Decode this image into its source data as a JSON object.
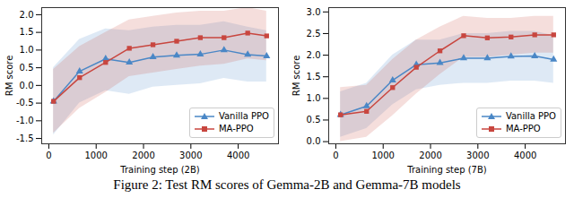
{
  "caption": "Figure 2: Test RM scores of Gemma-2B and Gemma-7B models",
  "chart_data": [
    {
      "type": "line",
      "x_label": "Training step (2B)",
      "y_label": "RM score",
      "x": [
        100,
        650,
        1200,
        1700,
        2200,
        2700,
        3200,
        3700,
        4200,
        4600
      ],
      "xlim": [
        -150,
        4850
      ],
      "xticks": [
        0,
        1000,
        2000,
        3000,
        4000
      ],
      "ylim": [
        -1.65,
        2.2
      ],
      "yticks": [
        {
          "value": -1.5,
          "label": "-1.5"
        },
        {
          "value": -1.0,
          "label": "-1.0"
        },
        {
          "value": -0.5,
          "label": "-0.5"
        },
        {
          "value": 0,
          "label": "0.0"
        },
        0.5,
        {
          "value": 1,
          "label": "1.0"
        },
        1.5,
        {
          "value": 2,
          "label": "2.0"
        }
      ],
      "grid": false,
      "legend": "lower right",
      "series": [
        {
          "name": "Vanilla PPO",
          "color": "#4a87c6",
          "marker": "triangle",
          "values": [
            -0.45,
            0.4,
            0.75,
            0.65,
            0.8,
            0.85,
            0.88,
            1.0,
            0.87,
            0.83
          ],
          "lower": [
            -1.4,
            -0.5,
            -0.15,
            -0.25,
            -0.05,
            0.0,
            0.05,
            0.2,
            0.1,
            0.1
          ],
          "upper": [
            0.5,
            1.3,
            1.6,
            1.55,
            1.65,
            1.7,
            1.7,
            1.8,
            1.65,
            1.55
          ]
        },
        {
          "name": "MA-PPO",
          "color": "#c8463f",
          "marker": "square",
          "values": [
            -0.45,
            0.22,
            0.65,
            1.05,
            1.15,
            1.25,
            1.35,
            1.35,
            1.48,
            1.4
          ],
          "lower": [
            -1.35,
            -0.65,
            -0.2,
            0.25,
            0.35,
            0.45,
            0.55,
            0.6,
            0.75,
            0.7
          ],
          "upper": [
            0.45,
            1.1,
            1.5,
            1.85,
            1.95,
            2.05,
            2.1,
            2.1,
            2.2,
            2.1
          ]
        }
      ]
    },
    {
      "type": "line",
      "x_label": "Training step (7B)",
      "y_label": "RM score",
      "x": [
        100,
        650,
        1200,
        1700,
        2200,
        2700,
        3200,
        3700,
        4200,
        4600
      ],
      "xlim": [
        -150,
        4850
      ],
      "xticks": [
        0,
        1000,
        2000,
        3000,
        4000
      ],
      "ylim": [
        -0.05,
        3.1
      ],
      "yticks": [
        {
          "value": 0,
          "label": "0.0"
        },
        0.5,
        {
          "value": 1,
          "label": "1.0"
        },
        1.5,
        {
          "value": 2,
          "label": "2.0"
        },
        2.5,
        {
          "value": 3,
          "label": "3.0"
        }
      ],
      "grid": false,
      "legend": "lower right",
      "series": [
        {
          "name": "Vanilla PPO",
          "color": "#4a87c6",
          "marker": "triangle",
          "values": [
            0.62,
            0.82,
            1.42,
            1.78,
            1.82,
            1.93,
            1.93,
            1.97,
            1.98,
            1.9
          ],
          "lower": [
            0.1,
            0.3,
            0.85,
            1.2,
            1.3,
            1.35,
            1.35,
            1.4,
            1.4,
            1.35
          ],
          "upper": [
            1.15,
            1.35,
            2.0,
            2.35,
            2.35,
            2.5,
            2.5,
            2.55,
            2.55,
            2.45
          ]
        },
        {
          "name": "MA-PPO",
          "color": "#c8463f",
          "marker": "square",
          "values": [
            0.62,
            0.7,
            1.25,
            1.72,
            2.1,
            2.45,
            2.4,
            2.42,
            2.47,
            2.47
          ],
          "lower": [
            0.0,
            0.1,
            0.6,
            1.1,
            1.55,
            1.95,
            1.95,
            2.0,
            2.05,
            2.05
          ],
          "upper": [
            1.25,
            1.3,
            1.9,
            2.35,
            2.65,
            2.9,
            2.85,
            2.85,
            2.9,
            2.9
          ]
        }
      ]
    }
  ]
}
